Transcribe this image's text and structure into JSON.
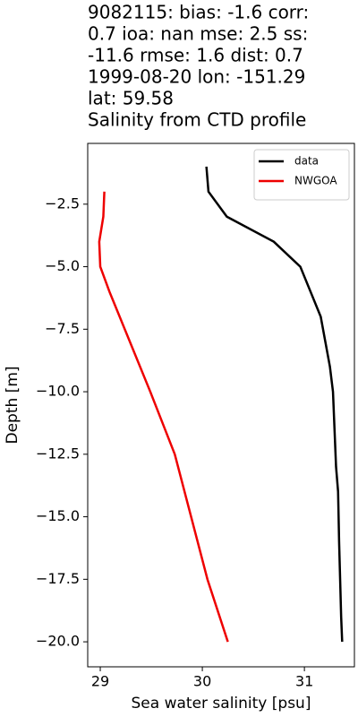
{
  "chart_data": {
    "type": "line",
    "title": [
      "9082115: bias: -1.6  corr:",
      "0.7  ioa: nan  mse: 2.5  ss:",
      "-11.6  rmse: 1.6  dist: 0.7",
      "1999-08-20 lon: -151.29",
      "lat: 59.58",
      "Salinity from CTD profile"
    ],
    "xlabel": "Sea water salinity [psu]",
    "ylabel": "Depth [m]",
    "xlim": [
      28.877,
      31.49
    ],
    "ylim": [
      -21.0,
      -0.07
    ],
    "xticks": [
      29,
      30,
      31
    ],
    "yticks": [
      {
        "value": -2.5,
        "label": "−2.5"
      },
      {
        "value": -5.0,
        "label": "−5.0"
      },
      {
        "value": -7.5,
        "label": "−7.5"
      },
      {
        "value": -10.0,
        "label": "−10.0"
      },
      {
        "value": -12.5,
        "label": "−12.5"
      },
      {
        "value": -15.0,
        "label": "−15.0"
      },
      {
        "value": -17.5,
        "label": "−17.5"
      },
      {
        "value": -20.0,
        "label": "−20.0"
      }
    ],
    "legend": "upper right",
    "series": [
      {
        "name": "data",
        "color": "#000000",
        "x": [
          30.04,
          30.06,
          30.24,
          30.7,
          30.96,
          31.06,
          31.16,
          31.25,
          31.28,
          31.3,
          31.31,
          31.33,
          31.34,
          31.36,
          31.37
        ],
        "y": [
          -1,
          -2,
          -3,
          -4,
          -5,
          -6,
          -7,
          -9,
          -10,
          -12,
          -13,
          -14,
          -16,
          -19,
          -20
        ]
      },
      {
        "name": "NWGOA",
        "color": "#ee0000",
        "x": [
          29.04,
          29.03,
          28.99,
          29.0,
          29.09,
          29.24,
          29.49,
          29.73,
          29.89,
          30.05,
          30.25
        ],
        "y": [
          -2,
          -3,
          -4,
          -5,
          -6,
          -7.5,
          -10,
          -12.5,
          -15,
          -17.5,
          -20
        ]
      }
    ]
  }
}
